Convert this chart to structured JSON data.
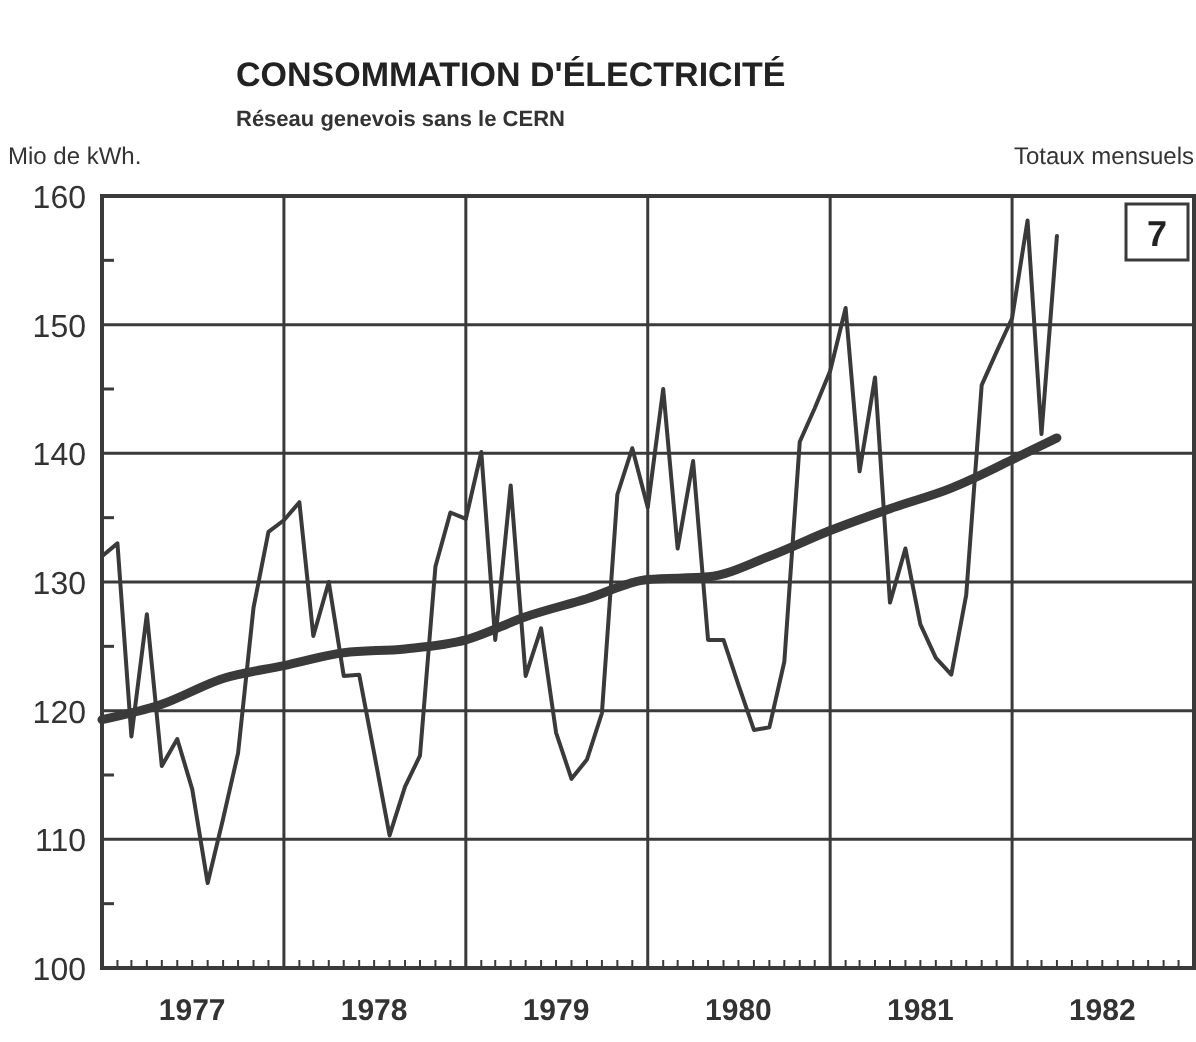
{
  "chart_data": {
    "type": "line",
    "title": "CONSOMMATION D'ÉLECTRICITÉ",
    "subtitle": "Réseau genevois sans le CERN",
    "ylabel": "Mio de kWh.",
    "annotations": [
      "Totaux mensuels",
      "7"
    ],
    "x": [
      "1977-01",
      "1977-02",
      "1977-03",
      "1977-04",
      "1977-05",
      "1977-06",
      "1977-07",
      "1977-08",
      "1977-09",
      "1977-10",
      "1977-11",
      "1977-12",
      "1978-01",
      "1978-02",
      "1978-03",
      "1978-04",
      "1978-05",
      "1978-06",
      "1978-07",
      "1978-08",
      "1978-09",
      "1978-10",
      "1978-11",
      "1978-12",
      "1979-01",
      "1979-02",
      "1979-03",
      "1979-04",
      "1979-05",
      "1979-06",
      "1979-07",
      "1979-08",
      "1979-09",
      "1979-10",
      "1979-11",
      "1979-12",
      "1980-01",
      "1980-02",
      "1980-03",
      "1980-04",
      "1980-05",
      "1980-06",
      "1980-07",
      "1980-08",
      "1980-09",
      "1980-10",
      "1980-11",
      "1980-12",
      "1981-01",
      "1981-02",
      "1981-03",
      "1981-04",
      "1981-05",
      "1981-06",
      "1981-07",
      "1981-08",
      "1981-09",
      "1981-10",
      "1981-11",
      "1981-12",
      "1982-01",
      "1982-02",
      "1982-03",
      "1982-04"
    ],
    "series": [
      {
        "color": "#3a3a3a",
        "values": [
          132,
          133,
          118,
          127.5,
          115.7,
          117.8,
          113.9,
          106.6,
          111.6,
          116.7,
          128,
          133.9,
          134.8,
          136.2,
          125.8,
          130,
          122.7,
          122.8,
          116.7,
          110.3,
          114.1,
          116.5,
          131.2,
          135.4,
          134.9,
          140.1,
          125.5,
          137.5,
          122.7,
          126.4,
          118.3,
          114.7,
          116.2,
          119.8,
          136.8,
          140.4,
          135.8,
          145,
          132.6,
          139.4,
          125.5,
          125.5,
          122,
          118.5,
          118.7,
          123.8,
          140.9,
          143.5,
          146.4,
          151.3,
          138.6,
          145.9,
          128.4,
          132.6,
          126.7,
          124.1,
          122.8,
          129,
          145.3,
          147.9,
          150.5,
          158.1,
          141.5,
          156.9
        ]
      },
      {
        "color": "#3a3a3a",
        "x": [
          "1977-01",
          "1977-05",
          "1977-09",
          "1978-01",
          "1978-05",
          "1978-09",
          "1979-01",
          "1979-05",
          "1979-09",
          "1980-01",
          "1980-05",
          "1980-09",
          "1981-01",
          "1981-05",
          "1981-09",
          "1982-01",
          "1982-04"
        ],
        "values": [
          119.3,
          120.5,
          122.5,
          123.5,
          124.5,
          124.8,
          125.5,
          127.3,
          128.7,
          130.2,
          130.4,
          132,
          134,
          135.7,
          137.3,
          139.5,
          141.2
        ]
      }
    ],
    "xlim": [
      "1977-01",
      "1983-01"
    ],
    "xticks": [
      {
        "value": "1977-07",
        "label": "1977"
      },
      {
        "value": "1978-07",
        "label": "1978"
      },
      {
        "value": "1979-07",
        "label": "1979"
      },
      {
        "value": "1980-07",
        "label": "1980"
      },
      {
        "value": "1981-07",
        "label": "1981"
      },
      {
        "value": "1982-07",
        "label": "1982"
      },
      {
        "value": "1978-01",
        "label": null
      },
      {
        "value": "1979-01",
        "label": null
      },
      {
        "value": "1980-01",
        "label": null
      },
      {
        "value": "1981-01",
        "label": null
      },
      {
        "value": "1982-01",
        "label": null
      }
    ],
    "ylim": [
      100,
      160
    ],
    "yticks": [
      100,
      110,
      120,
      130,
      140,
      150,
      160,
      {
        "value": 105,
        "label": null
      },
      {
        "value": 115,
        "label": null
      },
      {
        "value": 125,
        "label": null
      },
      {
        "value": 135,
        "label": null
      },
      {
        "value": 145,
        "label": null
      },
      {
        "value": 155,
        "label": null
      }
    ],
    "grid": true
  }
}
